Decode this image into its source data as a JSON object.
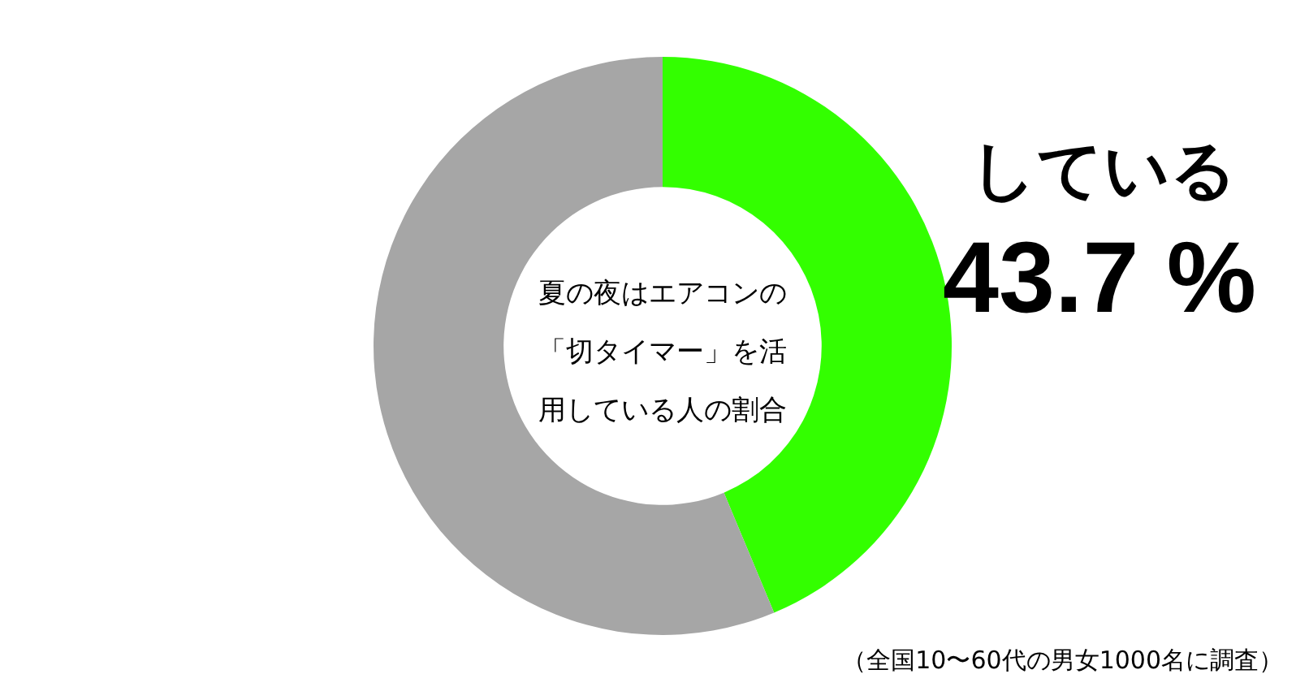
{
  "chart_data": {
    "type": "donut",
    "title": "夏の夜はエアコンの「切タイマー」を活用している人の割合",
    "categories": [
      "している",
      null
    ],
    "values": [
      43.7,
      56.3
    ],
    "colors": [
      "#33ff00",
      "#a6a6a6"
    ],
    "value_labels": [
      "43.7 %",
      null
    ],
    "legend": false,
    "annotations": [
      "（全国10〜60代の男女1000名に調査）"
    ]
  }
}
